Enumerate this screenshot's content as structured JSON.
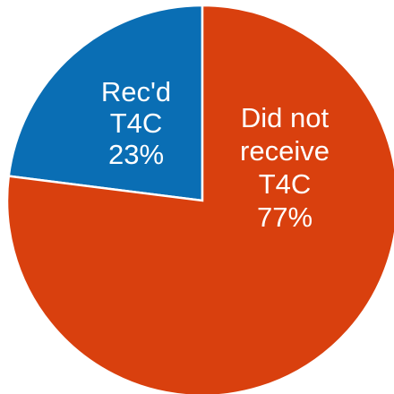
{
  "chart_data": {
    "type": "pie",
    "title": "",
    "slices": [
      {
        "key": "received",
        "label_lines": [
          "Rec'd",
          "T4C",
          "23%"
        ],
        "value": 23,
        "color": "#0A6EB4"
      },
      {
        "key": "not_received",
        "label_lines": [
          "Did not",
          "receive",
          "T4C",
          "77%"
        ],
        "value": 77,
        "color": "#D9400E"
      }
    ],
    "start": "12 o'clock",
    "direction": "counter-clockwise for first slice",
    "legend": "none"
  }
}
